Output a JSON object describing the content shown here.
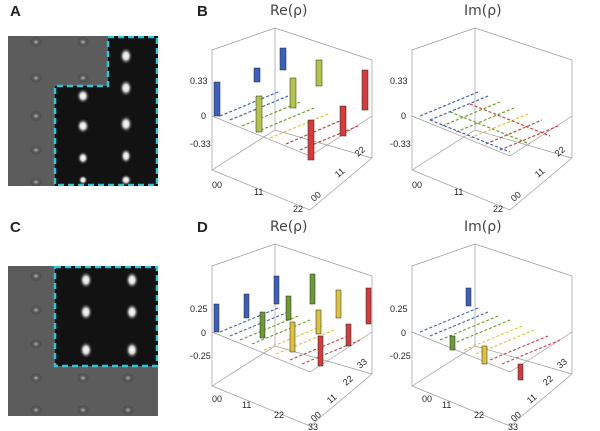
{
  "panel_labels": {
    "a": "A",
    "b": "B",
    "c": "C",
    "d": "D"
  },
  "titles": {
    "b_re": "Re(ρ)",
    "b_im": "Im(ρ)",
    "d_re": "Re(ρ)",
    "d_im": "Im(ρ)"
  },
  "axes": {
    "top": {
      "ticks": [
        "0.33",
        "0",
        "−0.33"
      ],
      "x_ticks": [
        "00",
        "11",
        "22"
      ],
      "y_ticks": [
        "22",
        "11",
        "00"
      ]
    },
    "bottom": {
      "ticks": [
        "0.25",
        "0",
        "−0.25"
      ],
      "x_ticks": [
        "00",
        "11",
        "22",
        "33"
      ],
      "y_ticks": [
        "33",
        "22",
        "11",
        "00"
      ]
    }
  },
  "colors": {
    "blue": "#3a5fbf",
    "green": "#6a9c2e",
    "yellow": "#e0c233",
    "red": "#d63a3a",
    "dash": "#29c8d8",
    "grid": "#9a9a9a"
  }
}
